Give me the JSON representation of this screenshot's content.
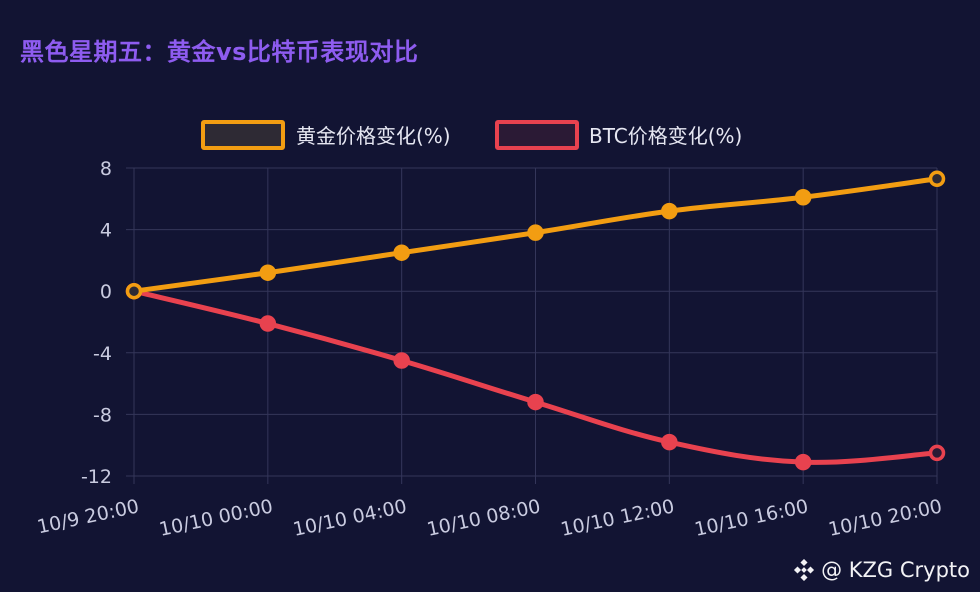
{
  "title": "黑色星期五：黄金vs比特币表现对比",
  "watermark": "@ KZG Crypto",
  "chart_data": {
    "type": "line",
    "title": "黑色星期五：黄金vs比特币表现对比",
    "categories": [
      "10/9 20:00",
      "10/10 00:00",
      "10/10 04:00",
      "10/10 08:00",
      "10/10 12:00",
      "10/10 16:00",
      "10/10 20:00"
    ],
    "series": [
      {
        "name": "黄金价格变化(%)",
        "values": [
          0,
          1.2,
          2.5,
          3.8,
          5.2,
          6.1,
          7.3
        ],
        "color": "#f29d12",
        "fill": "#2e2a34"
      },
      {
        "name": "BTC价格变化(%)",
        "values": [
          0,
          -2.1,
          -4.5,
          -7.2,
          -9.8,
          -11.1,
          -10.5
        ],
        "color": "#e8424f",
        "fill": "#2b1a35"
      }
    ],
    "yticks": [
      8,
      4,
      0,
      -4,
      -8,
      -12
    ],
    "ylim": [
      -12,
      8
    ],
    "grid": true,
    "legend_position": "top-center",
    "xlabel": "",
    "ylabel": ""
  }
}
